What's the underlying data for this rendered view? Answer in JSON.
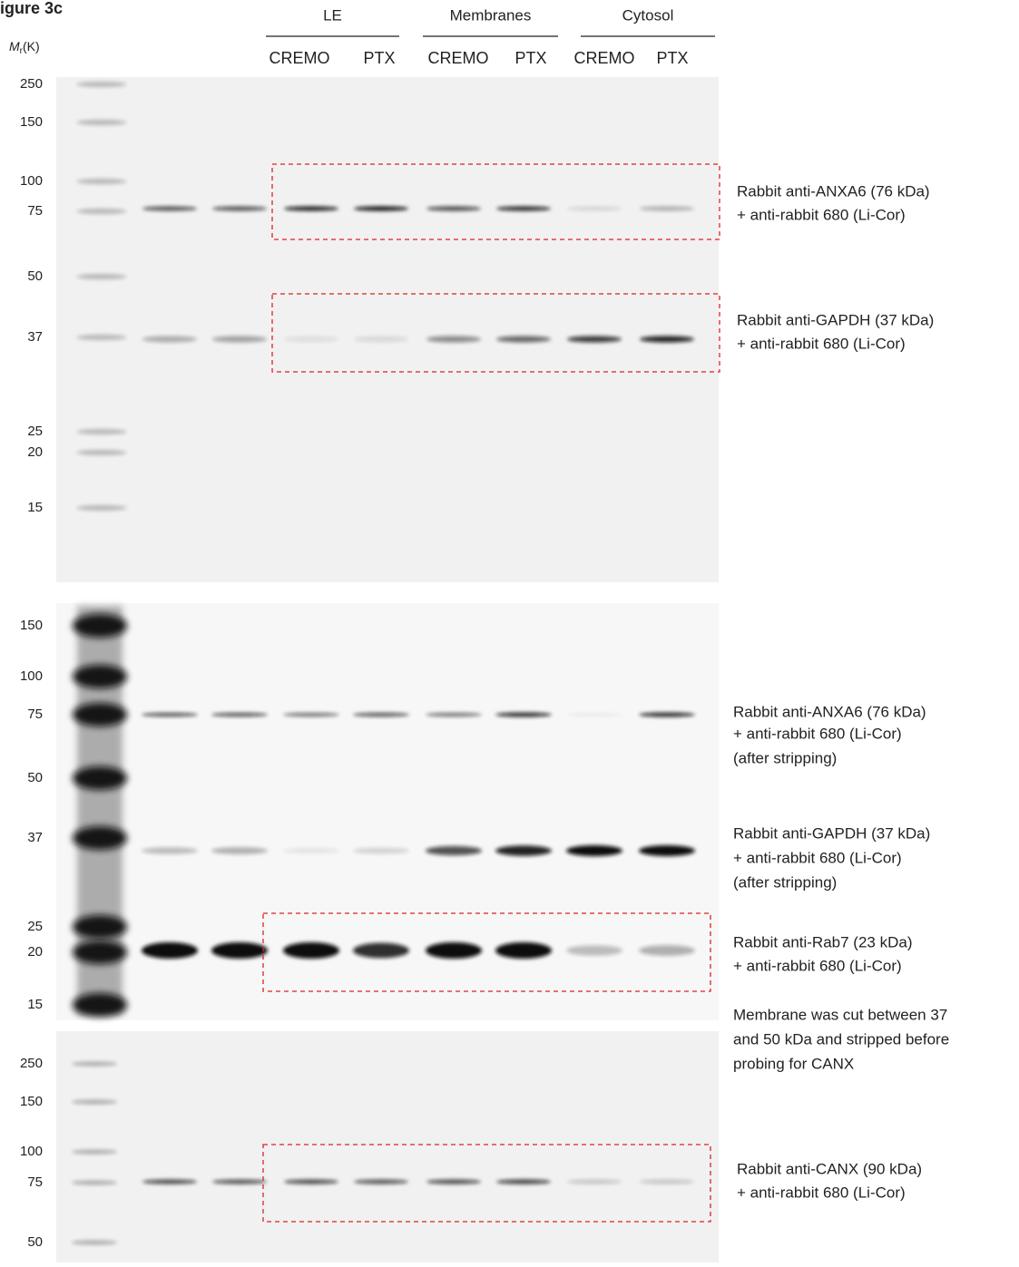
{
  "figure_label": "igure 3c",
  "mr_label": {
    "main": "M",
    "sub": "r",
    "unit": "(K)"
  },
  "groups": [
    {
      "label": "LE",
      "lanes": [
        "CREMO",
        "PTX"
      ]
    },
    {
      "label": "Membranes",
      "lanes": [
        "CREMO",
        "PTX"
      ]
    },
    {
      "label": "Cytosol",
      "lanes": [
        "CREMO",
        "PTX"
      ]
    }
  ],
  "panels": [
    {
      "markers": [
        "250",
        "150",
        "100",
        "75",
        "50",
        "37",
        "25",
        "20",
        "15"
      ],
      "annotations": [
        {
          "lines": [
            "Rabbit anti-ANXA6 (76 kDa)",
            "+ anti-rabbit 680 (Li-Cor)"
          ]
        },
        {
          "lines": [
            "Rabbit anti-GAPDH (37 kDa)",
            "+ anti-rabbit 680 (Li-Cor)"
          ]
        }
      ]
    },
    {
      "markers": [
        "150",
        "100",
        "75",
        "50",
        "37",
        "25",
        "20",
        "15"
      ],
      "annotations": [
        {
          "lines": [
            "Rabbit anti-ANXA6 (76 kDa)",
            "+ anti-rabbit 680 (Li-Cor)",
            "(after stripping)"
          ]
        },
        {
          "lines": [
            "Rabbit anti-GAPDH (37 kDa)",
            "+ anti-rabbit 680 (Li-Cor)",
            "(after stripping)"
          ]
        },
        {
          "lines": [
            "Rabbit anti-Rab7 (23 kDa)",
            "+ anti-rabbit 680 (Li-Cor)"
          ]
        }
      ]
    },
    {
      "markers": [
        "250",
        "150",
        "100",
        "75",
        "50"
      ],
      "annotations": [
        {
          "lines": [
            "Rabbit anti-CANX (90 kDa)",
            "+ anti-rabbit 680 (Li-Cor)"
          ]
        }
      ]
    }
  ],
  "note": {
    "lines": [
      "Membrane was cut between 37",
      "and 50 kDa and stripped before",
      "probing for CANX"
    ]
  }
}
